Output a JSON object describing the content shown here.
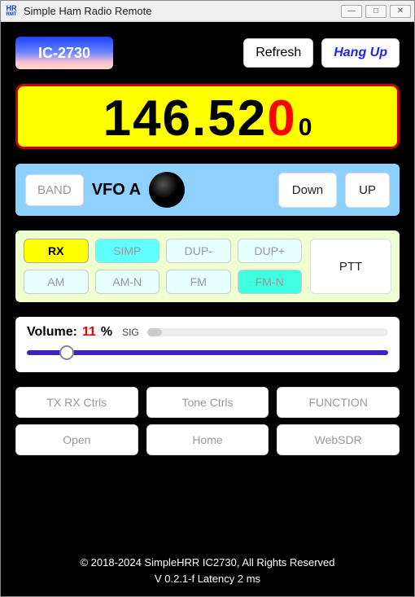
{
  "window": {
    "title": "Simple Ham Radio Remote",
    "icon_top": "HR",
    "icon_bot": "RMT"
  },
  "header": {
    "model": "IC-2730",
    "refresh": "Refresh",
    "hangup": "Hang Up"
  },
  "frequency": {
    "main": "146.52",
    "step_digit": "0",
    "sub_digit": "0",
    "bg_color": "#ffff00",
    "border_color": "#cc0000"
  },
  "vfo": {
    "band": "BAND",
    "label": "VFO A",
    "down": "Down",
    "up": "UP",
    "panel_bg": "#8ed0ff"
  },
  "modes": {
    "panel_bg": "#f0ffd0",
    "rx": "RX",
    "simp": "SIMP",
    "dup_minus": "DUP-",
    "dup_plus": "DUP+",
    "am": "AM",
    "amn": "AM-N",
    "fm": "FM",
    "fmn": "FM-N",
    "ptt": "PTT"
  },
  "volume": {
    "label": "Volume:",
    "value": "11",
    "pct": "%",
    "sig_label": "SIG",
    "sig_pct": 6,
    "slider_pct": 11,
    "track_color": "#4020c0"
  },
  "controls": {
    "txrx": "TX RX Ctrls",
    "tone": "Tone Ctrls",
    "function": "FUNCTION",
    "open": "Open",
    "home": "Home",
    "websdr": "WebSDR"
  },
  "footer": {
    "line1": "© 2018-2024 SimpleHRR IC2730,  All Rights Reserved",
    "line2": "V 0.2.1-f  Latency   2   ms"
  }
}
